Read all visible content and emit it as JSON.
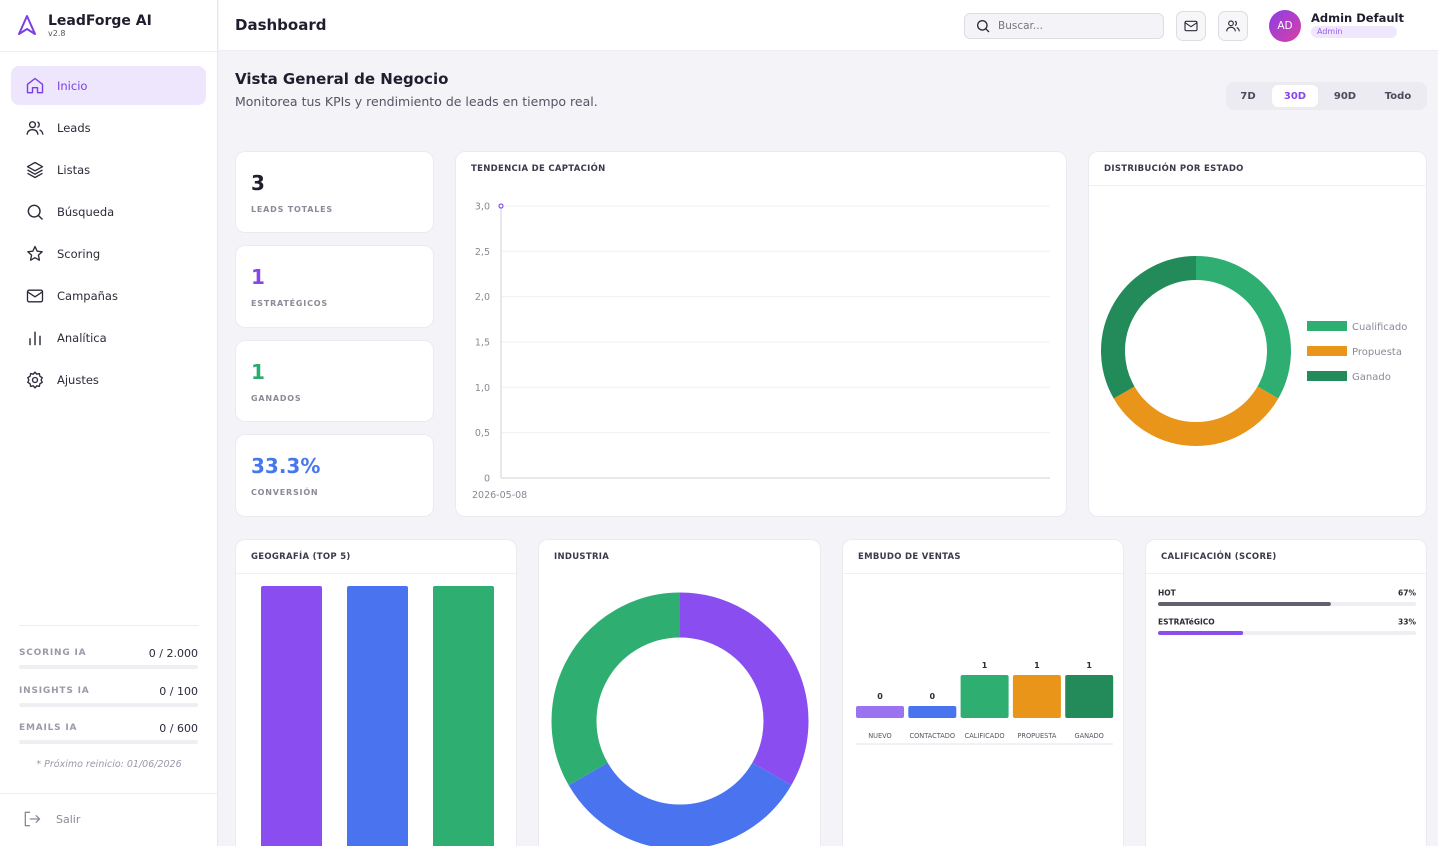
{
  "brand": {
    "name": "LeadForge AI",
    "version": "v2.8"
  },
  "nav": [
    {
      "label": "Inicio",
      "icon": "home-icon",
      "active": true
    },
    {
      "label": "Leads",
      "icon": "users-icon"
    },
    {
      "label": "Listas",
      "icon": "layers-icon"
    },
    {
      "label": "Búsqueda",
      "icon": "search-icon"
    },
    {
      "label": "Scoring",
      "icon": "star-icon"
    },
    {
      "label": "Campañas",
      "icon": "mail-icon"
    },
    {
      "label": "Analítica",
      "icon": "bar-chart-icon"
    },
    {
      "label": "Ajustes",
      "icon": "gear-icon"
    }
  ],
  "quotas": [
    {
      "label": "SCORING IA",
      "value": "0 / 2.000",
      "fraction": 0
    },
    {
      "label": "INSIGHTS IA",
      "value": "0 / 100",
      "fraction": 0
    },
    {
      "label": "EMAILS IA",
      "value": "0 / 600",
      "fraction": 0
    }
  ],
  "reset_note": "* Próximo reinicio: 01/06/2026",
  "logout_label": "Salir",
  "topbar": {
    "title": "Dashboard",
    "search_placeholder": "Buscar...",
    "user": {
      "initials": "AD",
      "name": "Admin Default",
      "role": "Admin"
    }
  },
  "heading": {
    "title": "Vista General de Negocio",
    "subtitle": "Monitorea tus KPIs y rendimiento de leads en tiempo real."
  },
  "ranges": [
    {
      "label": "7D",
      "active": false
    },
    {
      "label": "30D",
      "active": true
    },
    {
      "label": "90D",
      "active": false
    },
    {
      "label": "Todo",
      "active": false
    }
  ],
  "kpis": [
    {
      "value": "3",
      "label": "LEADS TOTALES",
      "color": "#1e1e2e"
    },
    {
      "value": "1",
      "label": "ESTRATÉGICOS",
      "color": "#8a45ea"
    },
    {
      "value": "1",
      "label": "GANADOS",
      "color": "#2bab6e"
    },
    {
      "value": "33.3%",
      "label": "CONVERSIÓN",
      "color": "#4677ec"
    }
  ],
  "colors": {
    "purple": "#8a4ef0",
    "blue": "#4a74ef",
    "green": "#2fae72",
    "orange": "#e8951a",
    "dark_green": "#238a59",
    "gray": "#61616f"
  },
  "chart_data": [
    {
      "title": "TENDENCIA DE CAPTACIÓN",
      "type": "line",
      "x": [
        "2026-05-08"
      ],
      "series": [
        {
          "values": [
            3
          ]
        }
      ],
      "ylim": [
        0,
        3
      ],
      "yticks": [
        "0",
        "0,5",
        "1,0",
        "1,5",
        "2,0",
        "2,5",
        "3,0"
      ],
      "grid": true
    },
    {
      "title": "DISTRIBUCIÓN POR ESTADO",
      "type": "pie",
      "categories": [
        "Cualificado",
        "Propuesta",
        "Ganado"
      ],
      "values": [
        1,
        1,
        1
      ],
      "colors": [
        "#2fae72",
        "#e8951a",
        "#238a59"
      ],
      "legend": "right"
    },
    {
      "title": "GEOGRAFÍA (TOP 5)",
      "type": "bar",
      "values": [
        1,
        1,
        1
      ],
      "colors": [
        "#8a4ef0",
        "#4a74ef",
        "#2fae72"
      ]
    },
    {
      "title": "INDUSTRIA",
      "type": "pie",
      "values": [
        1,
        1,
        1
      ],
      "colors": [
        "#8a4ef0",
        "#4a74ef",
        "#2fae72"
      ]
    },
    {
      "title": "EMBUDO DE VENTAS",
      "type": "bar",
      "categories": [
        "NUEVO",
        "CONTACTADO",
        "CALIFICADO",
        "PROPUESTA",
        "GANADO"
      ],
      "values": [
        0,
        0,
        1,
        1,
        1
      ],
      "colors": [
        "#9b72ef",
        "#4a74ef",
        "#2fae72",
        "#e8951a",
        "#238a59"
      ]
    },
    {
      "title": "CALIFICACIÓN (SCORE)",
      "type": "bar",
      "categories": [
        "HOT",
        "ESTRATéGICO"
      ],
      "values": [
        67,
        33
      ],
      "value_labels": [
        "67%",
        "33%"
      ],
      "colors": [
        "#61616f",
        "#8a4ef0"
      ]
    }
  ]
}
